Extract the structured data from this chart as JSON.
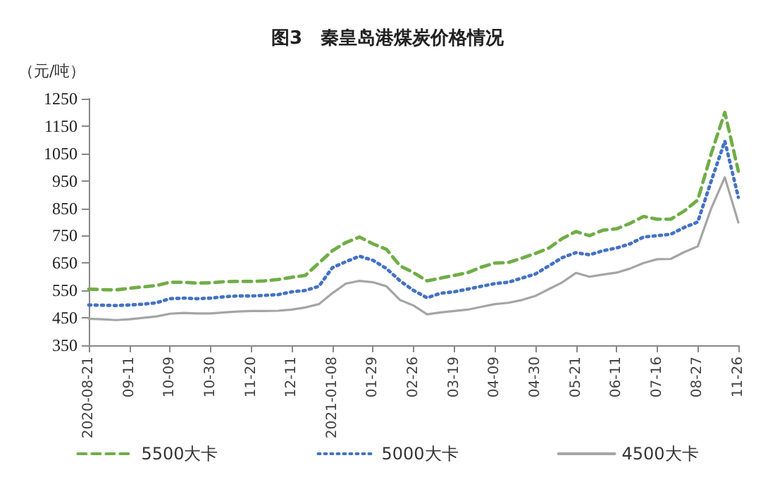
{
  "chart_data": {
    "type": "line",
    "title": "图3　秦皇岛港煤炭价格情况",
    "ylabel": "（元/吨）",
    "categories": [
      "2020-08-21",
      null,
      null,
      "09-11",
      null,
      null,
      "10-09",
      null,
      null,
      "10-30",
      null,
      null,
      "11-20",
      null,
      null,
      "12-11",
      null,
      null,
      "2021-01-08",
      null,
      null,
      "01-29",
      null,
      null,
      "02-26",
      null,
      null,
      "03-19",
      null,
      null,
      "04-09",
      null,
      null,
      "04-30",
      null,
      null,
      "05-21",
      null,
      null,
      "06-11",
      null,
      null,
      "07-16",
      null,
      null,
      "08-27",
      null,
      null,
      "11-26"
    ],
    "ylim": [
      350,
      1250
    ],
    "yticks": [
      350,
      450,
      550,
      650,
      750,
      850,
      950,
      1050,
      1150,
      1250
    ],
    "grid": false,
    "legend": "bottom",
    "marker": "none",
    "series": [
      {
        "name": "5500大卡",
        "color": "#70ad47",
        "line_style": "dashed",
        "values": [
          555,
          553,
          552,
          558,
          563,
          568,
          580,
          580,
          577,
          578,
          582,
          583,
          583,
          585,
          590,
          598,
          605,
          650,
          695,
          725,
          745,
          720,
          700,
          640,
          615,
          585,
          595,
          605,
          615,
          635,
          650,
          652,
          668,
          685,
          705,
          740,
          765,
          750,
          770,
          775,
          795,
          820,
          810,
          810,
          840,
          880,
          1050,
          1200,
          985
        ]
      },
      {
        "name": "5000大卡",
        "color": "#4472c4",
        "line_style": "dotted",
        "values": [
          497,
          496,
          495,
          497,
          500,
          505,
          520,
          522,
          520,
          522,
          527,
          530,
          530,
          532,
          535,
          545,
          550,
          565,
          633,
          655,
          675,
          660,
          630,
          585,
          550,
          523,
          540,
          545,
          555,
          565,
          575,
          580,
          595,
          610,
          640,
          670,
          688,
          680,
          695,
          705,
          720,
          745,
          750,
          755,
          780,
          800,
          950,
          1095,
          890
        ]
      },
      {
        "name": "4500大卡",
        "color": "#a5a5a5",
        "line_style": "solid",
        "values": [
          447,
          445,
          442,
          445,
          450,
          455,
          465,
          468,
          466,
          466,
          470,
          473,
          475,
          475,
          476,
          480,
          488,
          500,
          540,
          575,
          585,
          580,
          565,
          515,
          495,
          463,
          470,
          475,
          480,
          490,
          500,
          505,
          515,
          530,
          555,
          580,
          614,
          600,
          608,
          615,
          630,
          650,
          664,
          665,
          690,
          711,
          850,
          963,
          798
        ]
      }
    ]
  }
}
